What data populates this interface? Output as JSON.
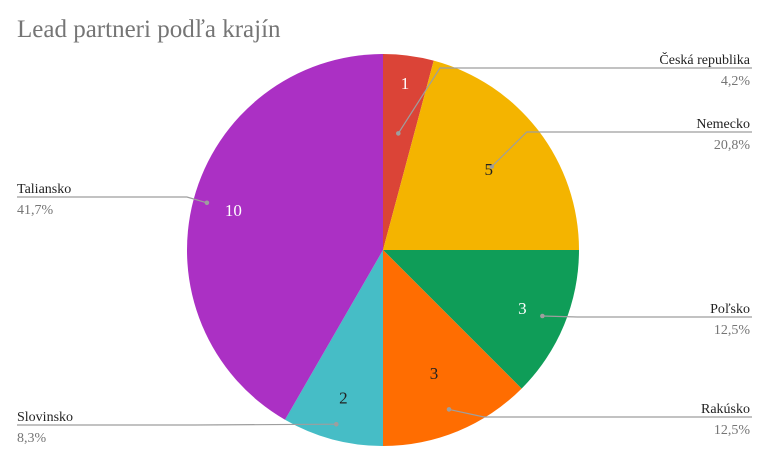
{
  "chart_data": {
    "type": "pie",
    "title": "Lead partneri podľa krajín",
    "legend": "labels-outside-with-leader-lines",
    "slices": [
      {
        "label": "Česká republika",
        "value": 1,
        "percent": "4,2%",
        "color": "#db4437",
        "value_color": "#ffffff"
      },
      {
        "label": "Nemecko",
        "value": 5,
        "percent": "20,8%",
        "color": "#f4b400",
        "value_color": "#222222"
      },
      {
        "label": "Poľsko",
        "value": 3,
        "percent": "12,5%",
        "color": "#0f9d58",
        "value_color": "#ffffff"
      },
      {
        "label": "Rakúsko",
        "value": 3,
        "percent": "12,5%",
        "color": "#ff6d01",
        "value_color": "#222222"
      },
      {
        "label": "Slovinsko",
        "value": 2,
        "percent": "8,3%",
        "color": "#46bdc6",
        "value_color": "#222222"
      },
      {
        "label": "Taliansko",
        "value": 10,
        "percent": "41,7%",
        "color": "#ab30c4",
        "value_color": "#ffffff"
      }
    ]
  }
}
